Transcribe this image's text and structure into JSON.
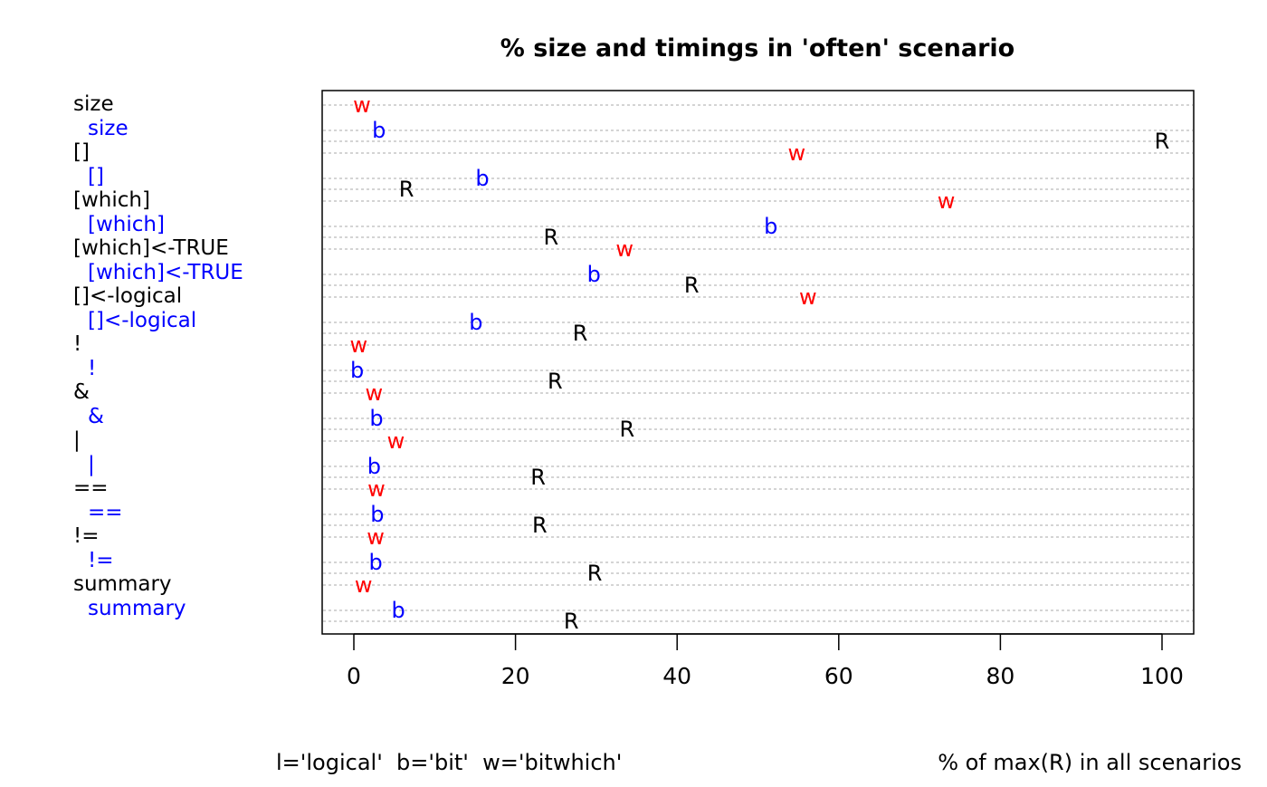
{
  "chart_data": {
    "type": "scatter",
    "title": "% size and timings in 'often' scenario",
    "xlabel": "% of max(R) in all scenarios",
    "legend_note": "l='logical'  b='bit'  w='bitwhich'",
    "xlim": [
      -4,
      104
    ],
    "xticks": [
      0,
      20,
      40,
      60,
      80,
      100
    ],
    "grid": "dotted horizontal lines per point",
    "categories": [
      "size",
      "[]",
      "[which]",
      "[which]<-TRUE",
      "[]<-logical",
      "!",
      "&",
      "|",
      "==",
      "!=",
      "summary"
    ],
    "series": [
      {
        "name": "w",
        "color": "#ff0000",
        "values": [
          1.0,
          54.8,
          73.3,
          33.5,
          56.2,
          0.6,
          2.5,
          5.2,
          2.8,
          2.7,
          1.2
        ]
      },
      {
        "name": "b",
        "color": "#0000ff",
        "values": [
          3.1,
          15.9,
          51.6,
          29.7,
          15.1,
          0.4,
          2.8,
          2.5,
          2.9,
          2.7,
          5.5
        ]
      },
      {
        "name": "R",
        "color": "#000000",
        "values": [
          100,
          6.5,
          24.4,
          41.8,
          28.0,
          24.9,
          33.8,
          22.8,
          23.0,
          29.8,
          26.9
        ]
      }
    ],
    "label_colors": {
      "group": "#000000",
      "sub": "#0000ff"
    }
  }
}
